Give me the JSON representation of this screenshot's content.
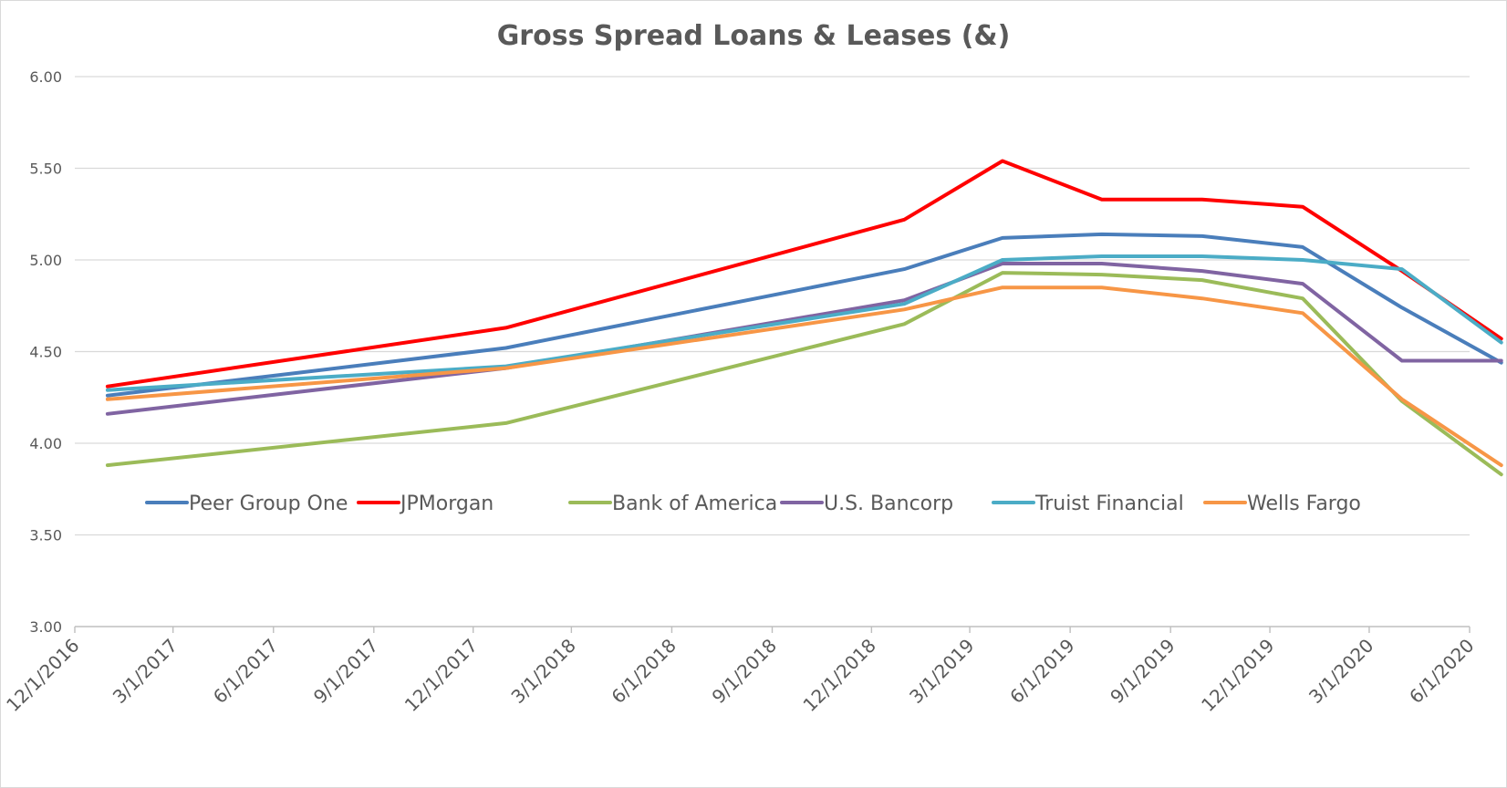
{
  "chart_data": {
    "type": "line",
    "title": "Gross Spread Loans & Leases  (&)",
    "xlabel": "",
    "ylabel": "",
    "ylim": [
      3.0,
      6.0
    ],
    "yticks": [
      "3.00",
      "3.50",
      "4.00",
      "4.50",
      "5.00",
      "5.50",
      "6.00"
    ],
    "x_tick_labels": [
      "12/1/2016",
      "3/1/2017",
      "6/1/2017",
      "9/1/2017",
      "12/1/2017",
      "3/1/2018",
      "6/1/2018",
      "9/1/2018",
      "12/1/2018",
      "3/1/2019",
      "6/1/2019",
      "9/1/2019",
      "12/1/2019",
      "3/1/2020",
      "6/1/2020"
    ],
    "x": [
      "2016-12-31",
      "2017-12-31",
      "2018-12-31",
      "2019-03-31",
      "2019-06-30",
      "2019-09-30",
      "2019-12-31",
      "2020-03-31",
      "2020-06-30"
    ],
    "grid": true,
    "legend_position": "inside-lower-middle",
    "series": [
      {
        "name": "Peer Group One",
        "color": "#4a7ebb",
        "values": [
          4.26,
          4.52,
          4.95,
          5.12,
          5.14,
          5.13,
          5.07,
          4.74,
          4.44
        ]
      },
      {
        "name": "JPMorgan",
        "color": "#ff0000",
        "values": [
          4.31,
          4.63,
          5.22,
          5.54,
          5.33,
          5.33,
          5.29,
          4.94,
          4.57
        ]
      },
      {
        "name": "Bank of America",
        "color": "#9bbb59",
        "values": [
          3.88,
          4.11,
          4.65,
          4.93,
          4.92,
          4.89,
          4.79,
          4.23,
          3.83
        ]
      },
      {
        "name": "U.S. Bancorp",
        "color": "#8064a2",
        "values": [
          4.16,
          4.41,
          4.78,
          4.98,
          4.98,
          4.94,
          4.87,
          4.45,
          4.45
        ]
      },
      {
        "name": "Truist Financial",
        "color": "#4bacc6",
        "values": [
          4.29,
          4.42,
          4.76,
          5.0,
          5.02,
          5.02,
          5.0,
          4.95,
          4.55
        ]
      },
      {
        "name": "Wells Fargo",
        "color": "#f79646",
        "values": [
          4.24,
          4.41,
          4.73,
          4.85,
          4.85,
          4.79,
          4.71,
          4.24,
          3.88
        ]
      }
    ]
  }
}
